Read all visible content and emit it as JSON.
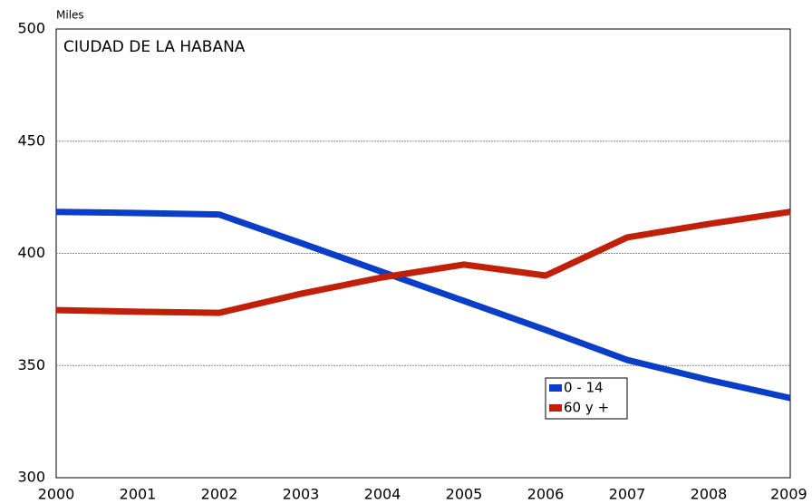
{
  "chart_data": {
    "type": "line",
    "y_label": "Miles",
    "annotation": "CIUDAD DE LA HABANA",
    "categories": [
      "2000",
      "2001",
      "2002",
      "2003",
      "2004",
      "2005",
      "2006",
      "2007",
      "2008",
      "2009"
    ],
    "series": [
      {
        "name": "0 - 14",
        "color": "#0a3ec8",
        "values": [
          418.5,
          418,
          417.3,
          404.6,
          391.7,
          378.8,
          365.9,
          352.5,
          343.6,
          335.5
        ]
      },
      {
        "name": "60 y +",
        "color": "#c0200a",
        "values": [
          374.7,
          374,
          373.5,
          382,
          389.3,
          395,
          390.1,
          407.1,
          413.1,
          418.5
        ]
      }
    ],
    "ylim": [
      300,
      500
    ],
    "yticks": [
      300,
      350,
      400,
      450,
      500
    ],
    "grid": true
  }
}
